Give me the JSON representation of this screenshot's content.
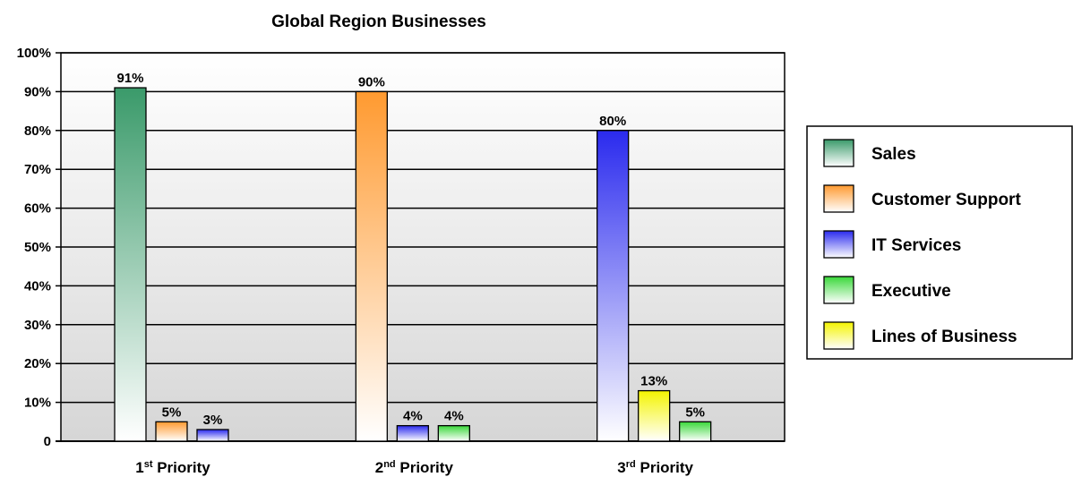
{
  "chart_data": {
    "type": "bar",
    "title": "Global Region Businesses",
    "xlabel": "",
    "ylabel": "",
    "ylim": [
      0,
      100
    ],
    "y_ticks": [
      {
        "value": 0,
        "label": "0"
      },
      {
        "value": 10,
        "label": "10%"
      },
      {
        "value": 20,
        "label": "20%"
      },
      {
        "value": 30,
        "label": "30%"
      },
      {
        "value": 40,
        "label": "40%"
      },
      {
        "value": 50,
        "label": "50%"
      },
      {
        "value": 60,
        "label": "60%"
      },
      {
        "value": 70,
        "label": "70%"
      },
      {
        "value": 80,
        "label": "80%"
      },
      {
        "value": 90,
        "label": "90%"
      },
      {
        "value": 100,
        "label": "100%"
      }
    ],
    "grid": true,
    "legend_position": "right",
    "categories": [
      {
        "base": "1",
        "sup": "st",
        "rest": " Priority"
      },
      {
        "base": "2",
        "sup": "nd",
        "rest": " Priority"
      },
      {
        "base": "3",
        "sup": "rd",
        "rest": " Priority"
      }
    ],
    "series": [
      {
        "name": "Sales",
        "color": "#3a9a6a",
        "values": [
          91,
          null,
          null
        ],
        "labels": [
          "91%",
          null,
          null
        ]
      },
      {
        "name": "Customer Support",
        "color": "#ff9a30",
        "values": [
          5,
          90,
          null
        ],
        "labels": [
          "5%",
          "90%",
          null
        ]
      },
      {
        "name": "IT Services",
        "color": "#2a2aee",
        "values": [
          3,
          4,
          80
        ],
        "labels": [
          "3%",
          "4%",
          "80%"
        ]
      },
      {
        "name": "Executive",
        "color": "#39d839",
        "values": [
          null,
          4,
          5
        ],
        "labels": [
          null,
          "4%",
          "5%"
        ]
      },
      {
        "name": "Lines of Business",
        "color": "#f4f400",
        "values": [
          null,
          null,
          13
        ],
        "labels": [
          null,
          null,
          "13%"
        ]
      }
    ],
    "bar_order": [
      [
        0,
        1,
        2
      ],
      [
        1,
        2,
        3
      ],
      [
        2,
        4,
        3
      ]
    ]
  }
}
